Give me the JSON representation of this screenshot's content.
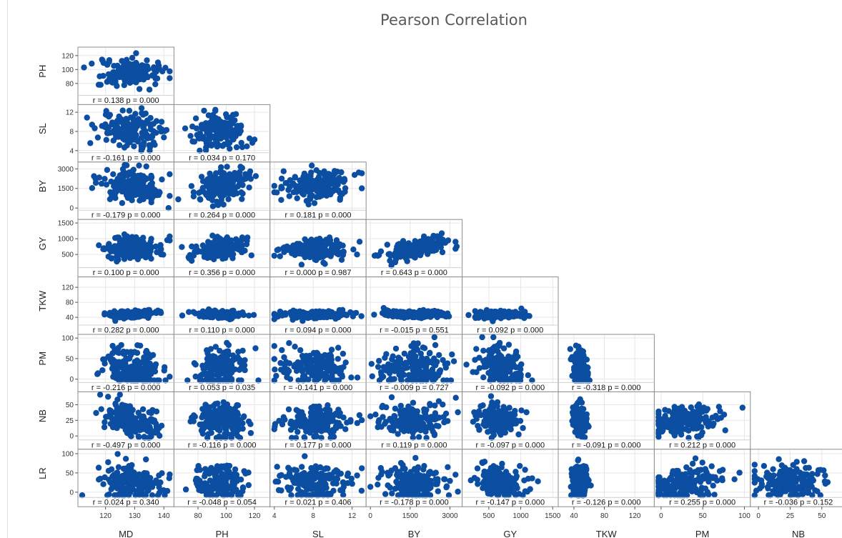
{
  "title": "Pearson Correlation",
  "colors": {
    "point": "#0b4ea2",
    "frame": "#8c8c8c",
    "grid": "#e6e6e6"
  },
  "chart_data": {
    "type": "scatter",
    "title": "Pearson Correlation",
    "subtype": "lower-triangle scatterplot matrix",
    "grid": true,
    "variables": [
      "MD",
      "PH",
      "SL",
      "BY",
      "GY",
      "TKW",
      "PM",
      "NB",
      "LR"
    ],
    "column_variables": [
      "MD",
      "PH",
      "SL",
      "BY",
      "GY",
      "TKW",
      "PM",
      "NB"
    ],
    "row_variables": [
      "PH",
      "SL",
      "BY",
      "GY",
      "TKW",
      "PM",
      "NB",
      "LR"
    ],
    "ranges": {
      "MD": [
        112,
        142
      ],
      "PH": [
        66,
        128
      ],
      "SL": [
        4,
        13
      ],
      "BY": [
        0,
        3300
      ],
      "GY": [
        150,
        1520
      ],
      "TKW": [
        25,
        140
      ],
      "PM": [
        -3,
        102
      ],
      "NB": [
        -3,
        66
      ],
      "LR": [
        -8,
        104
      ]
    },
    "x_ticks": {
      "MD": {
        "values": [
          120,
          130,
          140
        ],
        "labels": [
          "120",
          "130",
          "140"
        ]
      },
      "PH": {
        "values": [
          80,
          100,
          120
        ],
        "labels": [
          "80",
          "100",
          "120"
        ]
      },
      "SL": {
        "values": [
          4,
          8,
          12
        ],
        "labels": [
          "4",
          "8",
          "12"
        ]
      },
      "BY": {
        "values": [
          0,
          1500,
          3000
        ],
        "labels": [
          "0",
          "1500",
          "3000"
        ]
      },
      "GY": {
        "values": [
          500,
          1000,
          1500
        ],
        "labels": [
          "500",
          "1000",
          "1500"
        ]
      },
      "TKW": {
        "values": [
          40,
          80,
          120
        ],
        "labels": [
          "40",
          "80",
          "120"
        ]
      },
      "PM": {
        "values": [
          0,
          50,
          100
        ],
        "labels": [
          "0",
          "50",
          "100"
        ]
      },
      "NB": {
        "values": [
          0,
          25,
          50
        ],
        "labels": [
          "0",
          "25",
          "50"
        ]
      }
    },
    "y_ticks": {
      "PH": {
        "values": [
          80,
          100,
          120
        ],
        "labels": [
          "80",
          "100",
          "120"
        ]
      },
      "SL": {
        "values": [
          4,
          8,
          12
        ],
        "labels": [
          "4",
          "8",
          "12"
        ]
      },
      "BY": {
        "values": [
          0,
          1500,
          3000
        ],
        "labels": [
          "0",
          "1500",
          "3000"
        ]
      },
      "GY": {
        "values": [
          500,
          1000,
          1500
        ],
        "labels": [
          "500",
          "1000",
          "1500"
        ]
      },
      "TKW": {
        "values": [
          40,
          80,
          120
        ],
        "labels": [
          "40",
          "80",
          "120"
        ]
      },
      "PM": {
        "values": [
          0,
          50,
          100
        ],
        "labels": [
          "0",
          "50",
          "100"
        ]
      },
      "NB": {
        "values": [
          0,
          25,
          50
        ],
        "labels": [
          "0",
          "25",
          "50"
        ]
      },
      "LR": {
        "values": [
          0,
          50,
          100
        ],
        "labels": [
          "0",
          "50",
          "100"
        ]
      }
    },
    "centers": {
      "MD": 129,
      "PH": 96,
      "SL": 8.2,
      "BY": 1650,
      "GY": 680,
      "TKW": 48,
      "PM": 28,
      "NB": 25,
      "LR": 25
    },
    "spreads": {
      "MD": 5,
      "PH": 9,
      "SL": 1.8,
      "BY": 600,
      "GY": 180,
      "TKW": 5,
      "PM": 24,
      "NB": 12,
      "LR": 22
    },
    "cells": [
      {
        "row": "PH",
        "col": "MD",
        "r": 0.138,
        "label": "r = 0.138  p = 0.000"
      },
      {
        "row": "SL",
        "col": "MD",
        "r": -0.161,
        "label": "r = -0.161  p = 0.000"
      },
      {
        "row": "SL",
        "col": "PH",
        "r": 0.034,
        "label": "r = 0.034  p = 0.170"
      },
      {
        "row": "BY",
        "col": "MD",
        "r": -0.179,
        "label": "r = -0.179  p = 0.000"
      },
      {
        "row": "BY",
        "col": "PH",
        "r": 0.264,
        "label": "r = 0.264  p = 0.000"
      },
      {
        "row": "BY",
        "col": "SL",
        "r": 0.181,
        "label": "r = 0.181  p = 0.000"
      },
      {
        "row": "GY",
        "col": "MD",
        "r": 0.1,
        "label": "r = 0.100  p = 0.000"
      },
      {
        "row": "GY",
        "col": "PH",
        "r": 0.356,
        "label": "r = 0.356  p = 0.000"
      },
      {
        "row": "GY",
        "col": "SL",
        "r": 0.0,
        "label": "r = 0.000  p = 0.987"
      },
      {
        "row": "GY",
        "col": "BY",
        "r": 0.643,
        "label": "r = 0.643  p = 0.000"
      },
      {
        "row": "TKW",
        "col": "MD",
        "r": 0.282,
        "label": "r = 0.282  p = 0.000"
      },
      {
        "row": "TKW",
        "col": "PH",
        "r": 0.11,
        "label": "r = 0.110  p = 0.000"
      },
      {
        "row": "TKW",
        "col": "SL",
        "r": 0.094,
        "label": "r = 0.094  p = 0.000"
      },
      {
        "row": "TKW",
        "col": "BY",
        "r": -0.015,
        "label": "r = -0.015  p = 0.551"
      },
      {
        "row": "TKW",
        "col": "GY",
        "r": 0.092,
        "label": "r = 0.092  p = 0.000"
      },
      {
        "row": "PM",
        "col": "MD",
        "r": -0.216,
        "label": "r = -0.216  p = 0.000"
      },
      {
        "row": "PM",
        "col": "PH",
        "r": 0.053,
        "label": "r = 0.053  p = 0.035"
      },
      {
        "row": "PM",
        "col": "SL",
        "r": -0.141,
        "label": "r = -0.141  p = 0.000"
      },
      {
        "row": "PM",
        "col": "BY",
        "r": -0.009,
        "label": "r = -0.009  p = 0.727"
      },
      {
        "row": "PM",
        "col": "GY",
        "r": -0.092,
        "label": "r = -0.092  p = 0.000"
      },
      {
        "row": "PM",
        "col": "TKW",
        "r": -0.318,
        "label": "r = -0.318  p = 0.000"
      },
      {
        "row": "NB",
        "col": "MD",
        "r": -0.497,
        "label": "r = -0.497  p = 0.000"
      },
      {
        "row": "NB",
        "col": "PH",
        "r": -0.116,
        "label": "r = -0.116  p = 0.000"
      },
      {
        "row": "NB",
        "col": "SL",
        "r": 0.177,
        "label": "r = 0.177  p = 0.000"
      },
      {
        "row": "NB",
        "col": "BY",
        "r": 0.119,
        "label": "r = 0.119  p = 0.000"
      },
      {
        "row": "NB",
        "col": "GY",
        "r": -0.097,
        "label": "r = -0.097  p = 0.000"
      },
      {
        "row": "NB",
        "col": "TKW",
        "r": -0.091,
        "label": "r = -0.091  p = 0.000"
      },
      {
        "row": "NB",
        "col": "PM",
        "r": 0.212,
        "label": "r = 0.212  p = 0.000"
      },
      {
        "row": "LR",
        "col": "MD",
        "r": 0.024,
        "label": "r = 0.024  p = 0.340"
      },
      {
        "row": "LR",
        "col": "PH",
        "r": -0.048,
        "label": "r = -0.048  p = 0.054"
      },
      {
        "row": "LR",
        "col": "SL",
        "r": 0.021,
        "label": "r = 0.021  p = 0.406"
      },
      {
        "row": "LR",
        "col": "BY",
        "r": -0.178,
        "label": "r = -0.178  p = 0.000"
      },
      {
        "row": "LR",
        "col": "GY",
        "r": -0.147,
        "label": "r = -0.147  p = 0.000"
      },
      {
        "row": "LR",
        "col": "TKW",
        "r": -0.126,
        "label": "r = -0.126  p = 0.000"
      },
      {
        "row": "LR",
        "col": "PM",
        "r": 0.255,
        "label": "r = 0.255  p = 0.000"
      },
      {
        "row": "LR",
        "col": "NB",
        "r": -0.036,
        "label": "r = -0.036  p = 0.152"
      }
    ]
  }
}
